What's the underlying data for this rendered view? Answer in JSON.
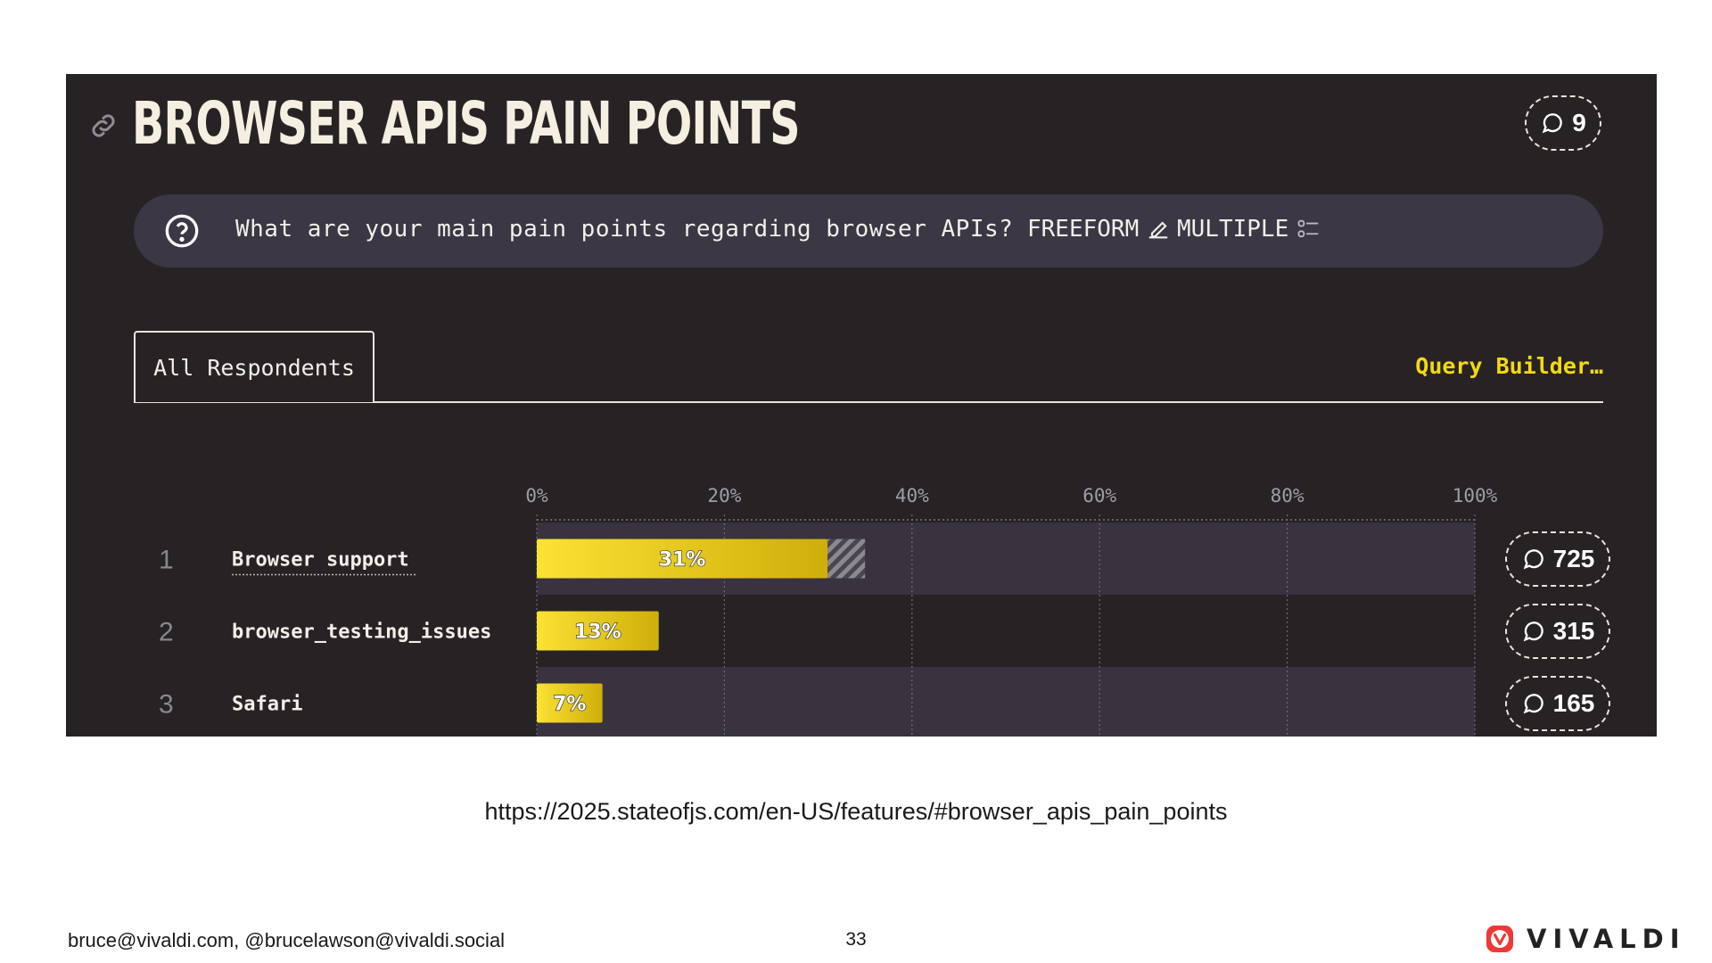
{
  "panel": {
    "title": "BROWSER APIS PAIN POINTS",
    "comment_count": "9",
    "question": "What are your main pain points regarding browser APIs?",
    "freeform_label": "FREEFORM",
    "multiple_label": "MULTIPLE",
    "tab_label": "All Respondents",
    "query_builder_label": "Query Builder…",
    "colors": {
      "panel_bg": "#272325",
      "question_bar": "#3c3745",
      "bar_yellow": "#f5d90f",
      "accent_text": "#f5d90f"
    }
  },
  "chart_data": {
    "type": "bar",
    "orientation": "horizontal",
    "categories": [
      "Browser support",
      "browser_testing_issues",
      "Safari"
    ],
    "ranks": [
      "1",
      "2",
      "3"
    ],
    "values": [
      31,
      13,
      7
    ],
    "value_labels": [
      "31%",
      "13%",
      "7%"
    ],
    "comment_counts": [
      "725",
      "315",
      "165"
    ],
    "xticks": [
      "0%",
      "20%",
      "40%",
      "60%",
      "80%",
      "100%"
    ],
    "xlim": [
      0,
      100
    ],
    "hatch_extension": [
      4,
      0,
      0
    ],
    "grid": true
  },
  "footer": {
    "url": "https://2025.stateofjs.com/en-US/features/#browser_apis_pain_points",
    "contact": "bruce@vivaldi.com, @brucelawson@vivaldi.social",
    "page_number": "33",
    "brand": "VIVALDI",
    "brand_color": "#ef3939"
  }
}
